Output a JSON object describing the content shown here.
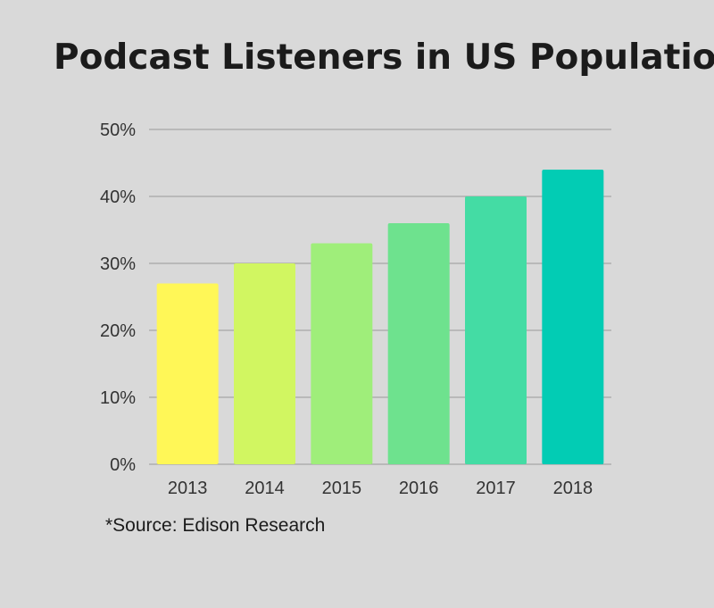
{
  "chart_data": {
    "type": "bar",
    "title": "Podcast Listeners in US Population",
    "xlabel": "",
    "ylabel": "",
    "categories": [
      "2013",
      "2014",
      "2015",
      "2016",
      "2017",
      "2018"
    ],
    "values": [
      27,
      30,
      33,
      36,
      40,
      44
    ],
    "unit": "%",
    "ylim": [
      0,
      50
    ],
    "yticks": [
      "0%",
      "10%",
      "20%",
      "30%",
      "40%",
      "50%"
    ],
    "grid": true,
    "bar_colors": [
      "#fff757",
      "#d1f661",
      "#9fee7a",
      "#6ee28e",
      "#44dca4",
      "#02ccb4"
    ],
    "gridline_color": "#999999",
    "note": "*Source: Edison Research"
  }
}
